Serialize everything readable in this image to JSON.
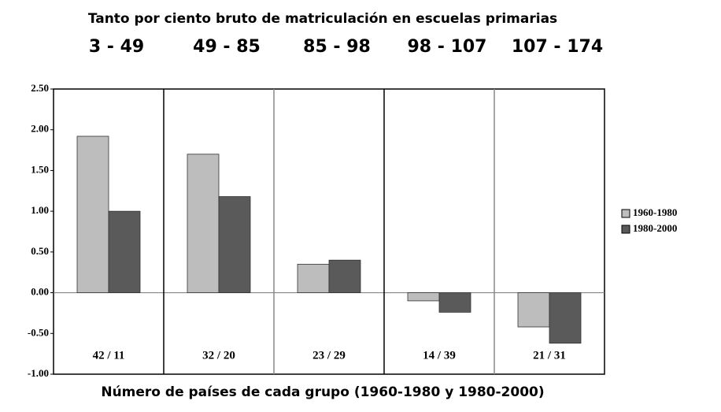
{
  "chart_data": {
    "type": "bar",
    "title": "Tanto por ciento bruto de matriculación en escuelas primarias",
    "categories": [
      "3 - 49",
      "49 - 85",
      "85 - 98",
      "98 - 107",
      "107 - 174"
    ],
    "group_counts": [
      "42 / 11",
      "32 / 20",
      "23 / 29",
      "14 / 39",
      "21 / 31"
    ],
    "x_label": "Número de países de cada grupo (1960-1980 y 1980-2000)",
    "series": [
      {
        "name": "1960-1980",
        "color": "#bdbdbd",
        "values": [
          1.92,
          1.7,
          0.35,
          -0.1,
          -0.42
        ]
      },
      {
        "name": "1980-2000",
        "color": "#5a5a5a",
        "values": [
          1.0,
          1.18,
          0.4,
          -0.24,
          -0.62
        ]
      }
    ],
    "ylim": [
      -1,
      2.5
    ],
    "yticks": [
      {
        "value": -1,
        "label": "-1.00"
      },
      {
        "value": -0.5,
        "label": "-0.50"
      },
      {
        "value": 0,
        "label": "0.00"
      },
      {
        "value": 0.5,
        "label": "0.50"
      },
      {
        "value": 1,
        "label": "1.00"
      },
      {
        "value": 1.5,
        "label": "1.50"
      },
      {
        "value": 2,
        "label": "2.00"
      },
      {
        "value": 2.5,
        "label": "2.50"
      }
    ],
    "legend": "right"
  }
}
